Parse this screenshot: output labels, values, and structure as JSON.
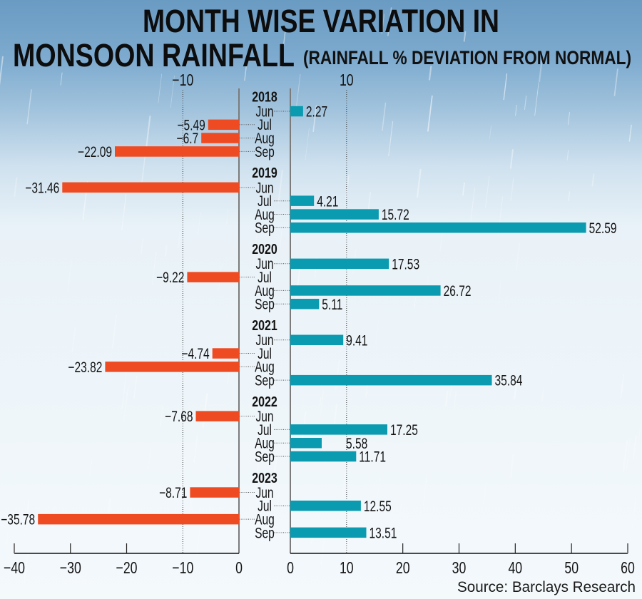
{
  "colors": {
    "positive": "#0a9bb1",
    "negative": "#ee4b22",
    "axis": "#7b7b7b",
    "text": "#141414",
    "background_top": "#6a9bc2",
    "background_bottom": "#f4f9fc"
  },
  "chart_data": {
    "type": "bar",
    "orientation": "horizontal",
    "title": "MONTH WISE VARIATION IN MONSOON RAINFALL",
    "title_lines": [
      "MONTH WISE VARIATION IN",
      "MONSOON RAINFALL"
    ],
    "subtitle": "(RAINFALL % DEVIATION FROM NORMAL)",
    "source": "Source: Barclays Research",
    "xlabel": "",
    "ylabel": "",
    "unit": "% deviation from normal",
    "grid": true,
    "legend": null,
    "groups": [
      {
        "year": "2018",
        "months": [
          "Jun",
          "Jul",
          "Aug",
          "Sep"
        ],
        "values": [
          2.27,
          -5.49,
          -6.7,
          -22.09
        ],
        "labels": [
          "2.27",
          "−5.49",
          "−6.7",
          "−22.09"
        ]
      },
      {
        "year": "2019",
        "months": [
          "Jun",
          "Jul",
          "Aug",
          "Sep"
        ],
        "values": [
          -31.46,
          4.21,
          15.72,
          52.59
        ],
        "labels": [
          "−31.46",
          "4.21",
          "15.72",
          "52.59"
        ]
      },
      {
        "year": "2020",
        "months": [
          "Jun",
          "Jul",
          "Aug",
          "Sep"
        ],
        "values": [
          17.53,
          -9.22,
          26.72,
          5.11
        ],
        "labels": [
          "17.53",
          "−9.22",
          "26.72",
          "5.11"
        ]
      },
      {
        "year": "2021",
        "months": [
          "Jun",
          "Jul",
          "Aug",
          "Sep"
        ],
        "values": [
          9.41,
          -4.74,
          -23.82,
          35.84
        ],
        "labels": [
          "9.41",
          "−4.74",
          "−23.82",
          "35.84"
        ]
      },
      {
        "year": "2022",
        "months": [
          "Jun",
          "Jul",
          "Aug",
          "Sep"
        ],
        "values": [
          -7.68,
          17.25,
          5.58,
          11.71
        ],
        "labels": [
          "−7.68",
          "17.25",
          "5.58",
          "11.71"
        ]
      },
      {
        "year": "2023",
        "months": [
          "Jun",
          "Jul",
          "Aug",
          "Sep"
        ],
        "values": [
          -8.71,
          12.55,
          -35.78,
          13.51
        ],
        "labels": [
          "−8.71",
          "12.55",
          "−35.78",
          "13.51"
        ]
      }
    ],
    "categories": [
      "2018 Jun",
      "2018 Jul",
      "2018 Aug",
      "2018 Sep",
      "2019 Jun",
      "2019 Jul",
      "2019 Aug",
      "2019 Sep",
      "2020 Jun",
      "2020 Jul",
      "2020 Aug",
      "2020 Sep",
      "2021 Jun",
      "2021 Jul",
      "2021 Aug",
      "2021 Sep",
      "2022 Jun",
      "2022 Jul",
      "2022 Aug",
      "2022 Sep",
      "2023 Jun",
      "2023 Jul",
      "2023 Aug",
      "2023 Sep"
    ],
    "series": [
      {
        "name": "Rainfall % deviation from normal",
        "values": [
          2.27,
          -5.49,
          -6.7,
          -22.09,
          -31.46,
          4.21,
          15.72,
          52.59,
          17.53,
          -9.22,
          26.72,
          5.11,
          9.41,
          -4.74,
          -23.82,
          35.84,
          -7.68,
          17.25,
          5.58,
          11.71,
          -8.71,
          12.55,
          -35.78,
          13.51
        ]
      }
    ],
    "negative_axis": {
      "range": [
        -40,
        0
      ],
      "ticks": [
        -40,
        -30,
        -20,
        -10,
        0
      ],
      "tick_labels": [
        "−40",
        "−30",
        "−20",
        "−10",
        "0"
      ],
      "gridlines": [
        -10
      ],
      "top_labels": [
        "−10"
      ]
    },
    "positive_axis": {
      "range": [
        0,
        60
      ],
      "ticks": [
        0,
        10,
        20,
        30,
        40,
        50,
        60
      ],
      "tick_labels": [
        "0",
        "10",
        "20",
        "30",
        "40",
        "50",
        "60"
      ],
      "gridlines": [
        10
      ],
      "top_labels": [
        "10"
      ]
    }
  }
}
